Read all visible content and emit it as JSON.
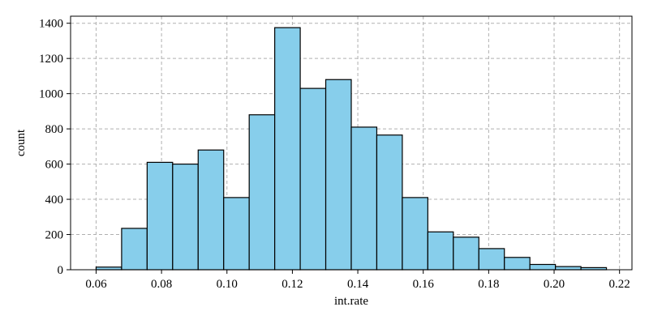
{
  "chart_data": {
    "type": "bar",
    "title": "",
    "xlabel": "int.rate",
    "ylabel": "count",
    "bin_edges": [
      0.06,
      0.0678,
      0.0756,
      0.0834,
      0.0912,
      0.099,
      0.1068,
      0.1146,
      0.1224,
      0.1302,
      0.138,
      0.1458,
      0.1536,
      0.1614,
      0.1692,
      0.177,
      0.1848,
      0.1926,
      0.2004,
      0.2082,
      0.216
    ],
    "values": [
      15,
      235,
      610,
      600,
      680,
      410,
      880,
      1375,
      1030,
      1080,
      810,
      765,
      410,
      215,
      185,
      120,
      70,
      30,
      18,
      12
    ],
    "xlim": [
      0.0522,
      0.2238
    ],
    "ylim": [
      0,
      1440
    ],
    "xticks": [
      0.06,
      0.08,
      0.1,
      0.12,
      0.14,
      0.16,
      0.18,
      0.2,
      0.22
    ],
    "xtick_labels": [
      "0.06",
      "0.08",
      "0.10",
      "0.12",
      "0.14",
      "0.16",
      "0.18",
      "0.20",
      "0.22"
    ],
    "yticks": [
      0,
      200,
      400,
      600,
      800,
      1000,
      1200,
      1400
    ],
    "ytick_labels": [
      "0",
      "200",
      "400",
      "600",
      "800",
      "1000",
      "1200",
      "1400"
    ],
    "grid": true,
    "bar_color": "#87ceeb",
    "edge_color": "#000000",
    "grid_color": "#b0b0b0"
  }
}
